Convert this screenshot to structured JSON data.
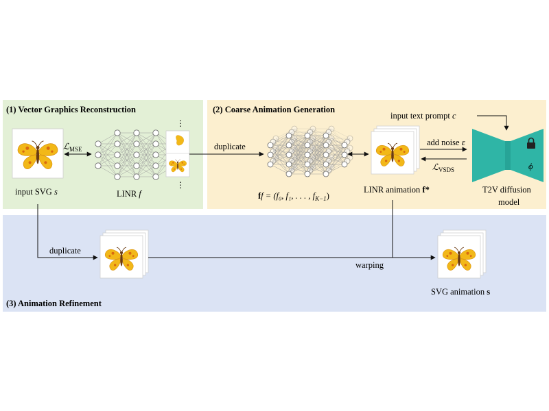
{
  "sections": {
    "reconstruction": {
      "title": "(1) Vector Graphics Reconstruction",
      "color": "#e3f0d6"
    },
    "coarse": {
      "title": "(2) Coarse Animation Generation",
      "color": "#fcefcf"
    },
    "refinement": {
      "title": "(3) Animation Refinement",
      "color": "#dbe3f4"
    }
  },
  "labels": {
    "input_svg": "input SVG ",
    "input_svg_var": "s",
    "loss_mse": "ℒ",
    "loss_mse_sub": "MSE",
    "linr": "LINR ",
    "linr_var": "f",
    "dots": "⋮",
    "duplicate_top": "duplicate",
    "f_formula": "f = (f₀, f₁, . . . , f",
    "f_formula_sub": "K−1",
    "f_formula_close": ")",
    "linr_animation": "LINR animation ",
    "linr_animation_var": "f*",
    "input_text_prompt": "input text prompt ",
    "input_text_prompt_var": "c",
    "add_noise": "add noise ",
    "add_noise_var": "ε",
    "loss_vsds": "ℒ",
    "loss_vsds_sub": "VSDS",
    "phi": "ϕ",
    "t2v_line1": "T2V diffusion",
    "t2v_line2": "model",
    "duplicate_bottom": "duplicate",
    "warping": "warping",
    "svg_animation": "SVG animation ",
    "svg_animation_var": "s"
  },
  "colors": {
    "butterfly_wing": "#f2b818",
    "butterfly_wing_dark": "#e59a0c",
    "butterfly_spot": "#d86a10",
    "butterfly_body": "#6a3b12",
    "nn_node": "#ffffff",
    "nn_node_stroke": "#666666",
    "diffusion": "#2fb5a6",
    "diffusion_dark": "#1f8f83"
  },
  "icons": {
    "butterfly": "butterfly-icon",
    "lock": "lock-icon",
    "neural_network": "neural-network-icon"
  }
}
